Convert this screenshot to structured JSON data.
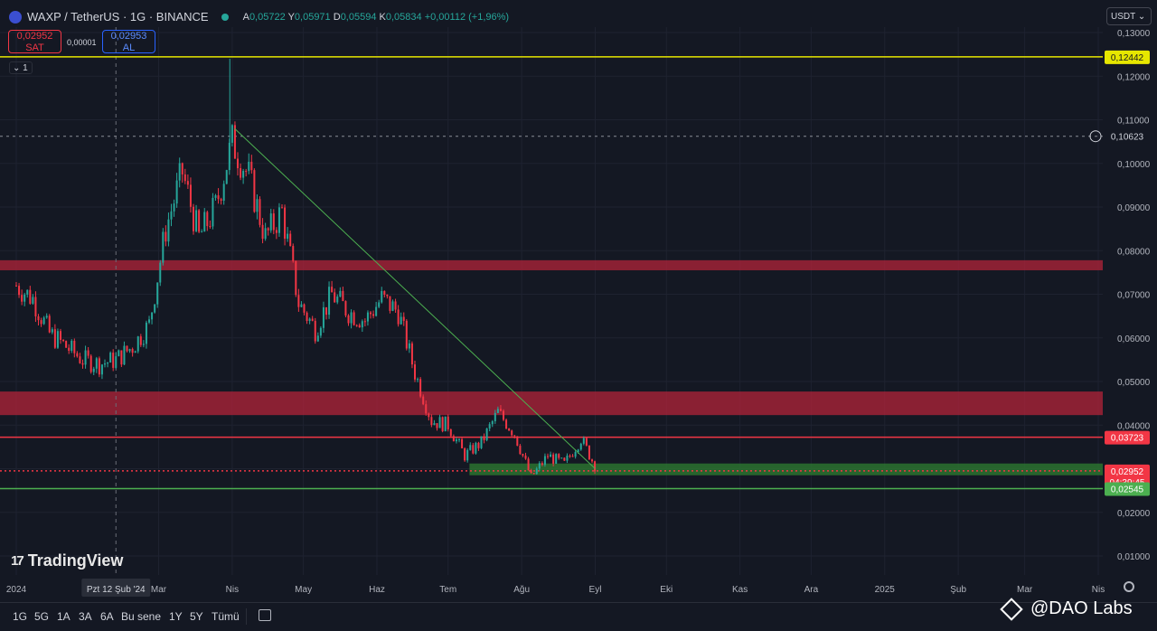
{
  "header": {
    "symbol": "WAXP / TetherUS · 1G · BINANCE",
    "ohlc": {
      "o_label": "A",
      "o": "0,05722",
      "h_label": "Y",
      "h": "0,05971",
      "l_label": "D",
      "l": "0,05594",
      "c_label": "K",
      "c": "0,05834",
      "change": "+0,00112 (+1,96%)"
    }
  },
  "trade": {
    "sell_price": "0,02952",
    "sell_label": "SAT",
    "spread": "0,00001",
    "buy_price": "0,02953",
    "buy_label": "AL"
  },
  "indicator_badge": "1",
  "currency": "USDT",
  "colors": {
    "up": "#26a69a",
    "down": "#f23645",
    "yellow": "#e6e600",
    "green": "#4caf50",
    "red_zone": "#b2233a"
  },
  "chart_data": {
    "type": "candlestick",
    "title": "WAXP / TetherUS · 1G · BINANCE",
    "ylim": [
      0.0,
      0.135
    ],
    "y_ticks": [
      "0,01000",
      "0,02000",
      "0,03000",
      "0,04000",
      "0,05000",
      "0,06000",
      "0,07000",
      "0,08000",
      "0,09000",
      "0,10000",
      "0,11000",
      "0,12000",
      "0,13000"
    ],
    "x_ticks": [
      "2024",
      "Mar",
      "Nis",
      "May",
      "Haz",
      "Tem",
      "Ağu",
      "Eyl",
      "Eki",
      "Kas",
      "Ara",
      "2025",
      "Şub",
      "Mar",
      "Nis"
    ],
    "crosshair_x_label": "Pzt 12 Şub '24",
    "price_path": [
      [
        "2024-01-01",
        0.072
      ],
      [
        "2024-01-08",
        0.069
      ],
      [
        "2024-01-15",
        0.061
      ],
      [
        "2024-01-22",
        0.058
      ],
      [
        "2024-01-29",
        0.055
      ],
      [
        "2024-02-05",
        0.054
      ],
      [
        "2024-02-12",
        0.055
      ],
      [
        "2024-02-19",
        0.058
      ],
      [
        "2024-02-26",
        0.063
      ],
      [
        "2024-03-04",
        0.085
      ],
      [
        "2024-03-11",
        0.098
      ],
      [
        "2024-03-18",
        0.083
      ],
      [
        "2024-03-25",
        0.09
      ],
      [
        "2024-04-01",
        0.105
      ],
      [
        "2024-04-08",
        0.097
      ],
      [
        "2024-04-15",
        0.083
      ],
      [
        "2024-04-22",
        0.089
      ],
      [
        "2024-04-29",
        0.068
      ],
      [
        "2024-05-06",
        0.062
      ],
      [
        "2024-05-13",
        0.07
      ],
      [
        "2024-05-20",
        0.066
      ],
      [
        "2024-05-27",
        0.064
      ],
      [
        "2024-06-03",
        0.069
      ],
      [
        "2024-06-10",
        0.066
      ],
      [
        "2024-06-17",
        0.052
      ],
      [
        "2024-06-24",
        0.041
      ],
      [
        "2024-07-01",
        0.04
      ],
      [
        "2024-07-08",
        0.033
      ],
      [
        "2024-07-15",
        0.036
      ],
      [
        "2024-07-22",
        0.043
      ],
      [
        "2024-07-29",
        0.038
      ],
      [
        "2024-08-05",
        0.028
      ],
      [
        "2024-08-12",
        0.033
      ],
      [
        "2024-08-19",
        0.031
      ],
      [
        "2024-08-26",
        0.037
      ],
      [
        "2024-09-02",
        0.0295
      ]
    ],
    "high_wick": [
      "2024-03-31",
      0.124
    ],
    "levels": [
      {
        "label": "0,12442",
        "value": 0.12442,
        "color": "#e6e600"
      },
      {
        "label": "0,10623",
        "value": 0.10623,
        "color": "#8a8d96",
        "style": "dashed"
      },
      {
        "label": "0,03723",
        "value": 0.03723,
        "color": "#f23645"
      },
      {
        "label": "0,02952",
        "value": 0.02952,
        "color": "#f23645",
        "sub": "04:39:45"
      },
      {
        "label": "0,02545",
        "value": 0.02545,
        "color": "#4caf50"
      }
    ],
    "zones": [
      {
        "from": 0.0755,
        "to": 0.0778,
        "color": "#b2233a"
      },
      {
        "from": 0.0423,
        "to": 0.0477,
        "color": "#b2233a"
      },
      {
        "from": 0.0285,
        "to": 0.0312,
        "color": "#2e7d32",
        "start": "2024-07-10"
      }
    ],
    "trendline": [
      [
        "2024-04-02",
        0.108
      ],
      [
        "2024-09-01",
        0.03
      ]
    ]
  },
  "timeframes": [
    "1G",
    "5G",
    "1A",
    "3A",
    "6A",
    "Bu sene",
    "1Y",
    "5Y",
    "Tümü"
  ],
  "watermark": "TradingView",
  "credit": "@DAO Labs"
}
